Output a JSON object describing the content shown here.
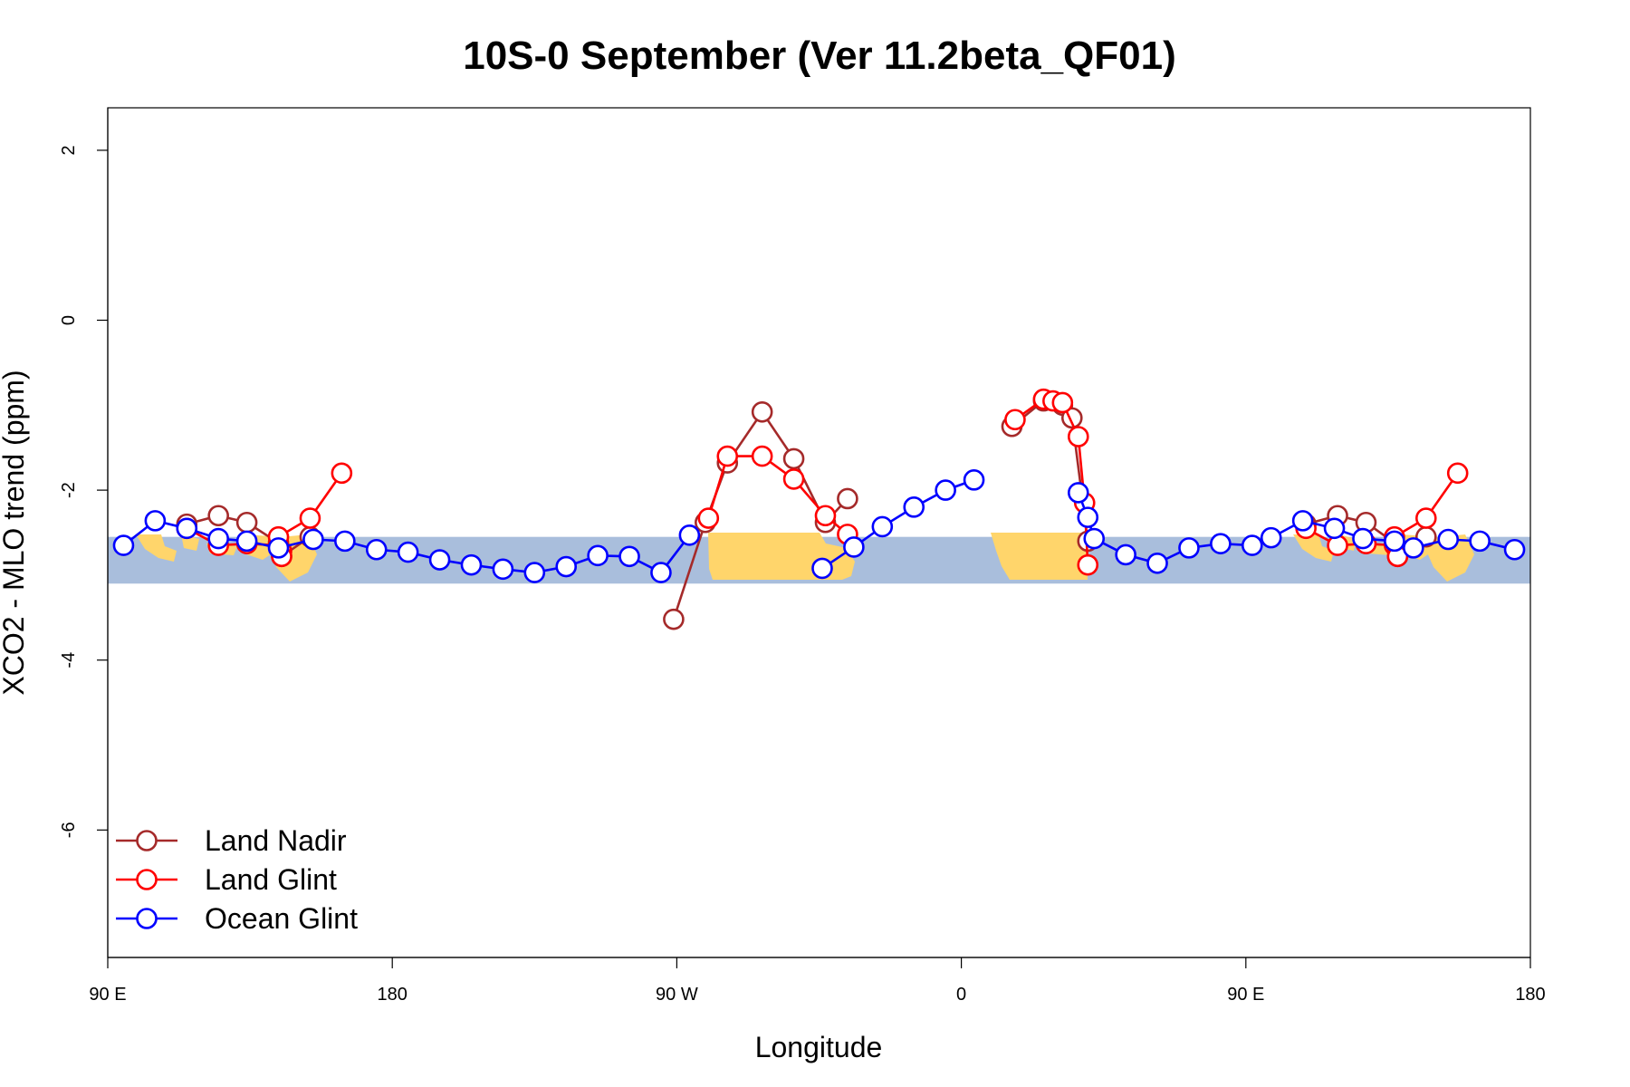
{
  "chart_data": {
    "type": "line",
    "title": "10S-0 September (Ver 11.2beta_QF01)",
    "xlabel": "Longitude",
    "ylabel": "XCO2 - MLO trend (ppm)",
    "xlim": [
      90,
      540
    ],
    "ylim": [
      -7.5,
      2.5
    ],
    "x_ticks": [
      {
        "value": 90,
        "label": "90 E"
      },
      {
        "value": 180,
        "label": "180"
      },
      {
        "value": 270,
        "label": "90 W"
      },
      {
        "value": 360,
        "label": "0"
      },
      {
        "value": 450,
        "label": "90 E"
      },
      {
        "value": 540,
        "label": "180"
      }
    ],
    "y_ticks": [
      {
        "value": 2,
        "label": "2"
      },
      {
        "value": 0,
        "label": "0"
      },
      {
        "value": -2,
        "label": "-2"
      },
      {
        "value": -4,
        "label": "-4"
      },
      {
        "value": -6,
        "label": "-6"
      }
    ],
    "legend_position": "bottom-left",
    "band": {
      "y_range": [
        -3.1,
        -2.55
      ],
      "ocean_color": "#a9bedc",
      "land_color": "#ffd56b"
    },
    "series": [
      {
        "name": "Land Nadir",
        "color": "#a52a2a",
        "segments": [
          [
            [
              115,
              -2.4
            ],
            [
              125,
              -2.3
            ],
            [
              134,
              -2.38
            ],
            [
              144,
              -2.62
            ],
            [
              145,
              -2.78
            ],
            [
              154,
              -2.55
            ]
          ],
          [
            [
              269,
              -3.52
            ],
            [
              279,
              -2.38
            ],
            [
              286,
              -1.68
            ],
            [
              297,
              -1.08
            ],
            [
              307,
              -1.63
            ],
            [
              317,
              -2.38
            ],
            [
              324,
              -2.1
            ]
          ],
          [
            [
              376,
              -1.25
            ],
            [
              386,
              -0.95
            ],
            [
              392,
              -1.0
            ],
            [
              395,
              -1.15
            ],
            [
              400,
              -2.6
            ]
          ],
          [
            [
              469,
              -2.4
            ],
            [
              479,
              -2.3
            ],
            [
              488,
              -2.38
            ],
            [
              497,
              -2.62
            ],
            [
              498,
              -2.78
            ],
            [
              507,
              -2.55
            ]
          ]
        ]
      },
      {
        "name": "Land Glint",
        "color": "#ff0000",
        "segments": [
          [
            [
              115,
              -2.45
            ],
            [
              125,
              -2.65
            ],
            [
              134,
              -2.63
            ],
            [
              144,
              -2.65
            ],
            [
              145,
              -2.72
            ],
            [
              145,
              -2.78
            ],
            [
              144,
              -2.55
            ],
            [
              154,
              -2.33
            ],
            [
              164,
              -1.8
            ]
          ],
          [
            [
              280,
              -2.33
            ],
            [
              286,
              -1.6
            ],
            [
              297,
              -1.6
            ],
            [
              307,
              -1.87
            ],
            [
              317,
              -2.3
            ],
            [
              324,
              -2.52
            ]
          ],
          [
            [
              377,
              -1.17
            ],
            [
              386,
              -0.93
            ],
            [
              389,
              -0.95
            ],
            [
              392,
              -0.97
            ],
            [
              397,
              -1.37
            ],
            [
              399,
              -2.15
            ],
            [
              400,
              -2.88
            ]
          ],
          [
            [
              469,
              -2.45
            ],
            [
              479,
              -2.65
            ],
            [
              488,
              -2.63
            ],
            [
              497,
              -2.65
            ],
            [
              498,
              -2.72
            ],
            [
              498,
              -2.78
            ],
            [
              497,
              -2.55
            ],
            [
              507,
              -2.33
            ],
            [
              517,
              -1.8
            ]
          ]
        ]
      },
      {
        "name": "Ocean Glint",
        "color": "#0000ff",
        "segments": [
          [
            [
              95,
              -2.65
            ],
            [
              105,
              -2.36
            ],
            [
              115,
              -2.45
            ],
            [
              125,
              -2.57
            ],
            [
              134,
              -2.6
            ],
            [
              144,
              -2.68
            ],
            [
              155,
              -2.58
            ],
            [
              165,
              -2.6
            ],
            [
              175,
              -2.7
            ],
            [
              185,
              -2.73
            ],
            [
              195,
              -2.82
            ],
            [
              205,
              -2.88
            ],
            [
              215,
              -2.93
            ],
            [
              225,
              -2.97
            ],
            [
              235,
              -2.9
            ],
            [
              245,
              -2.77
            ],
            [
              255,
              -2.78
            ],
            [
              265,
              -2.97
            ],
            [
              274,
              -2.53
            ]
          ],
          [
            [
              316,
              -2.92
            ],
            [
              326,
              -2.67
            ],
            [
              335,
              -2.43
            ],
            [
              345,
              -2.2
            ],
            [
              355,
              -2.0
            ],
            [
              364,
              -1.88
            ]
          ],
          [
            [
              397,
              -2.03
            ],
            [
              400,
              -2.32
            ],
            [
              402,
              -2.57
            ],
            [
              412,
              -2.76
            ],
            [
              422,
              -2.86
            ],
            [
              432,
              -2.68
            ],
            [
              442,
              -2.63
            ],
            [
              452,
              -2.65
            ],
            [
              458,
              -2.56
            ],
            [
              468,
              -2.36
            ],
            [
              478,
              -2.45
            ],
            [
              487,
              -2.57
            ],
            [
              497,
              -2.6
            ],
            [
              503,
              -2.68
            ],
            [
              514,
              -2.58
            ],
            [
              524,
              -2.6
            ],
            [
              535,
              -2.7
            ]
          ]
        ]
      }
    ]
  }
}
